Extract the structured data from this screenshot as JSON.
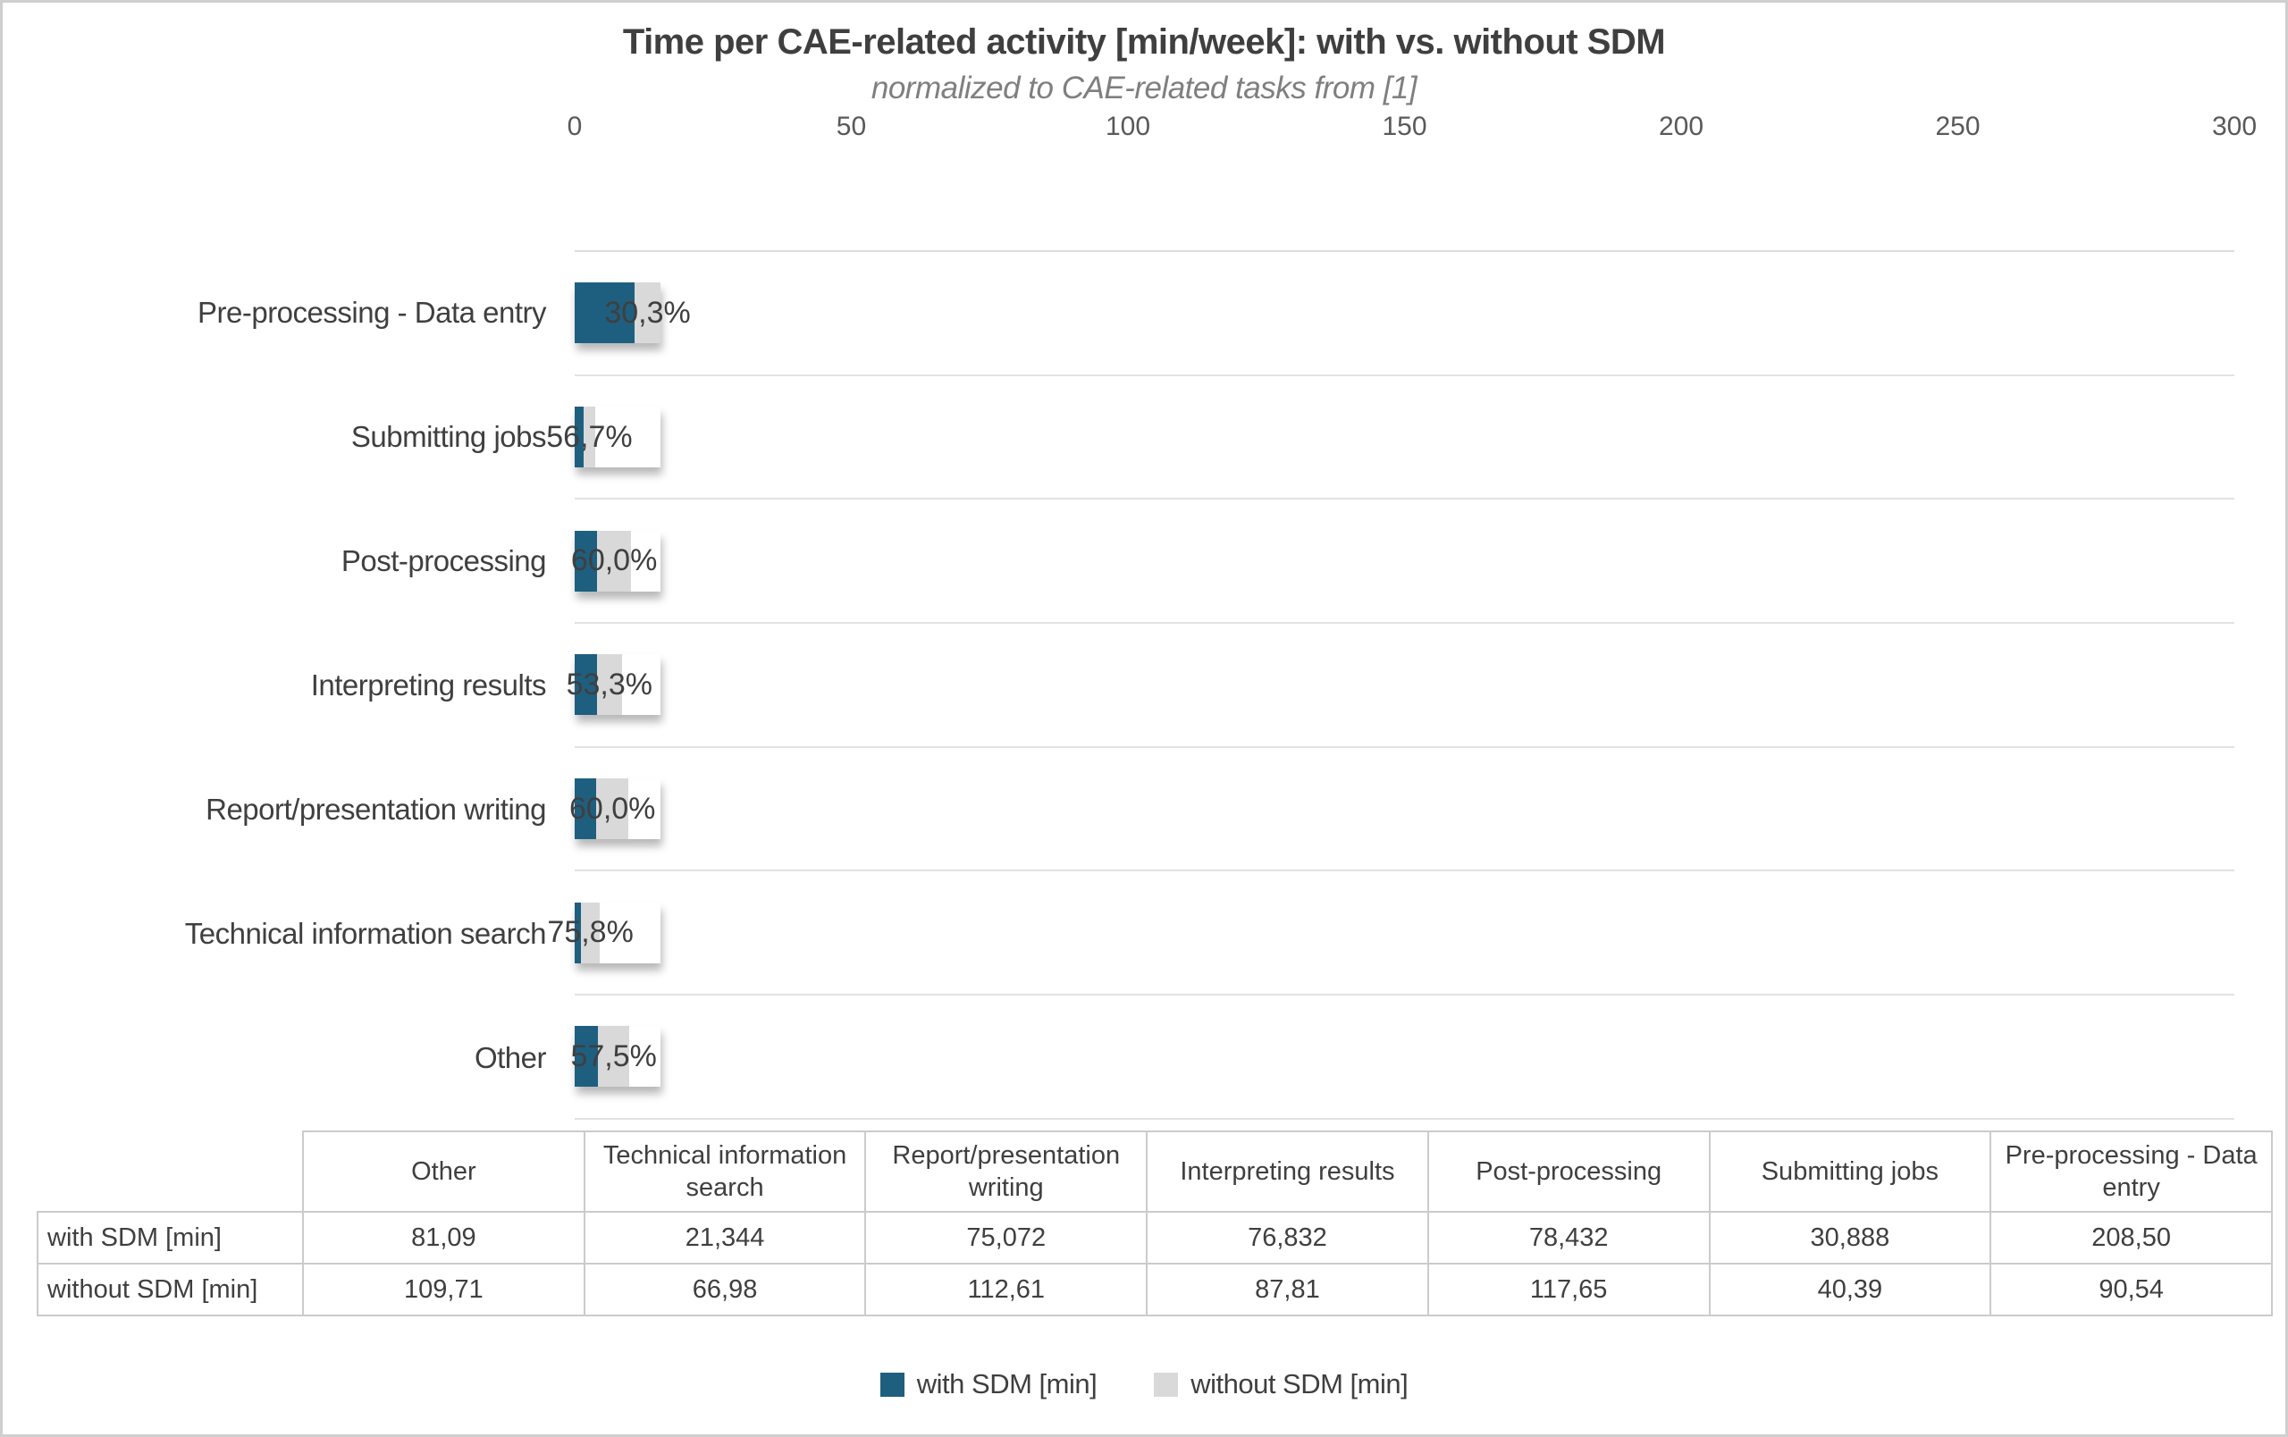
{
  "title": "Time per CAE-related activity [min/week]: with vs. without SDM",
  "subtitle": "normalized to CAE-related tasks from [1]",
  "colors": {
    "with_sdm": "#1e5f80",
    "without_sdm": "#d9d9d9",
    "title_text": "#3f3f3f",
    "subtitle_text": "#7f7f7f",
    "axis_text": "#595959",
    "gridline": "#e2e2e2",
    "table_border": "#cbcbcb"
  },
  "chart_data": {
    "type": "bar",
    "orientation": "horizontal",
    "stacked": true,
    "title": "Time per CAE-related activity [min/week]: with vs. without SDM",
    "subtitle": "normalized to CAE-related tasks from [1]",
    "x_axis": {
      "min": 0,
      "max": 300,
      "ticks": [
        "0",
        "50",
        "100",
        "150",
        "200",
        "250",
        "300"
      ],
      "position": "top"
    },
    "grid": "horizontal-row-separators",
    "legend_position": "bottom",
    "categories": [
      "Pre-processing - Data entry",
      "Submitting jobs",
      "Post-processing",
      "Interpreting results",
      "Report/presentation writing",
      "Technical information search",
      "Other"
    ],
    "series": [
      {
        "name": "with SDM [min]",
        "color": "#1e5f80",
        "values": [
          208.5,
          30.888,
          78.432,
          76.832,
          75.072,
          21.344,
          81.09
        ]
      },
      {
        "name": "without SDM [min]",
        "color": "#d9d9d9",
        "values": [
          90.54,
          40.39,
          117.65,
          87.81,
          112.61,
          66.98,
          109.71
        ]
      }
    ],
    "bar_labels": [
      "30,3%",
      "56,7%",
      "60,0%",
      "53,3%",
      "60,0%",
      "75,8%",
      "57,5%"
    ]
  },
  "table": {
    "corner": "",
    "columns": [
      "Other",
      "Technical information search",
      "Report/presentation writing",
      "Interpreting results",
      "Post-processing",
      "Submitting jobs",
      "Pre-processing - Data entry"
    ],
    "rows": [
      {
        "label": "with SDM [min]",
        "values": [
          "81,09",
          "21,344",
          "75,072",
          "76,832",
          "78,432",
          "30,888",
          "208,50"
        ]
      },
      {
        "label": "without SDM [min]",
        "values": [
          "109,71",
          "66,98",
          "112,61",
          "87,81",
          "117,65",
          "40,39",
          "90,54"
        ]
      }
    ]
  },
  "legend": {
    "items": [
      {
        "label": "with SDM [min]",
        "color": "#1e5f80"
      },
      {
        "label": "without SDM [min]",
        "color": "#d9d9d9"
      }
    ]
  }
}
